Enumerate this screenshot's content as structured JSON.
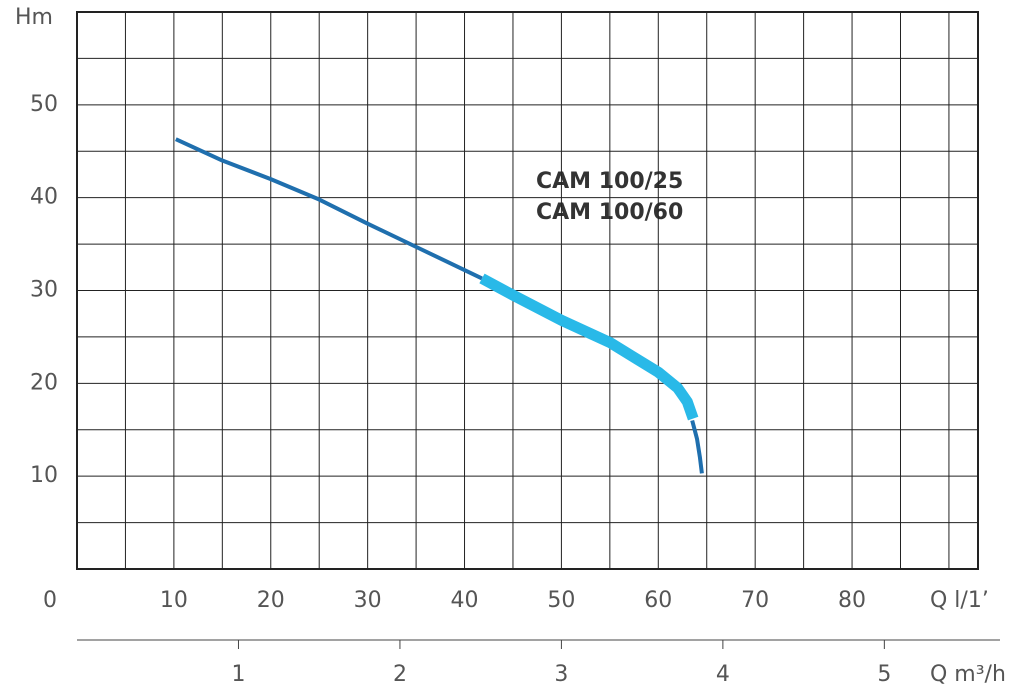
{
  "chart_data": {
    "type": "line",
    "ylabel": "Hm",
    "xlabel": "Q l/1’",
    "x2label": "Q m³/h",
    "annotation": [
      "CAM 100/25",
      "CAM 100/60"
    ],
    "xlim": [
      0,
      93
    ],
    "ylim": [
      0,
      60
    ],
    "xticks": [
      0,
      10,
      20,
      30,
      40,
      50,
      60,
      70,
      80
    ],
    "xminorticks": [
      5,
      15,
      25,
      35,
      45,
      55,
      65,
      75,
      85,
      90
    ],
    "yticks": [
      10,
      20,
      30,
      40,
      50
    ],
    "yminorticks": [
      5,
      15,
      25,
      35,
      45,
      55
    ],
    "x2lim": [
      0,
      5.58
    ],
    "x2ticks": [
      1,
      2,
      3,
      4,
      5
    ],
    "grid": true,
    "series": [
      {
        "color": "#1f6fae",
        "width": 4,
        "x": [
          10.2,
          15,
          20,
          25,
          30,
          35,
          41.8,
          null,
          63.5,
          64,
          64.3,
          64.5
        ],
        "values": [
          46.3,
          44,
          42,
          39.8,
          37.2,
          34.7,
          31.3,
          null,
          16,
          14,
          12,
          10.3
        ]
      },
      {
        "color": "#29b9e8",
        "width": 11,
        "x": [
          41.8,
          45,
          50,
          55,
          60,
          62,
          63,
          63.6
        ],
        "values": [
          31.3,
          29.5,
          26.8,
          24.4,
          21.2,
          19.5,
          18,
          16.2
        ]
      }
    ]
  }
}
